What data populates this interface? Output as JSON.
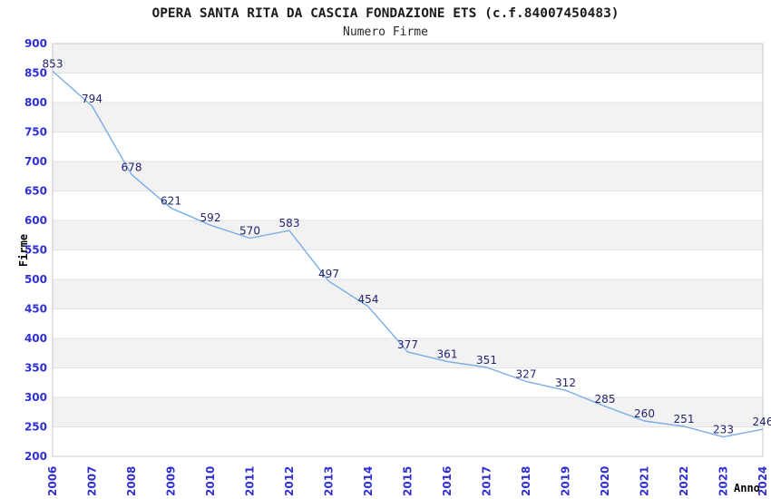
{
  "chart_data": {
    "type": "line",
    "title": "OPERA SANTA RITA DA CASCIA FONDAZIONE ETS (c.f.84007450483)",
    "subtitle": "Numero Firme",
    "xlabel": "Anno",
    "ylabel": "Firme",
    "categories": [
      "2006",
      "2007",
      "2008",
      "2009",
      "2010",
      "2011",
      "2012",
      "2013",
      "2014",
      "2015",
      "2016",
      "2017",
      "2018",
      "2019",
      "2020",
      "2021",
      "2022",
      "2023",
      "2024"
    ],
    "values": [
      853,
      794,
      678,
      621,
      592,
      570,
      583,
      497,
      454,
      377,
      361,
      351,
      327,
      312,
      285,
      260,
      251,
      233,
      246
    ],
    "ylim": [
      200,
      900
    ],
    "ytick_step": 50,
    "grid": true,
    "banded_background": true,
    "legend_position": "none",
    "data_labels_visible": true,
    "colors": {
      "line": "#79ade3",
      "tick_labels": "#2f2fd3",
      "data_labels": "#23236f",
      "band": "#f2f2f2",
      "gridline": "#e2e2e2",
      "plot_border": "#c8c8c8",
      "title": "#1b1b1b",
      "axis_titles": "#000000",
      "background": "#ffffff"
    }
  }
}
